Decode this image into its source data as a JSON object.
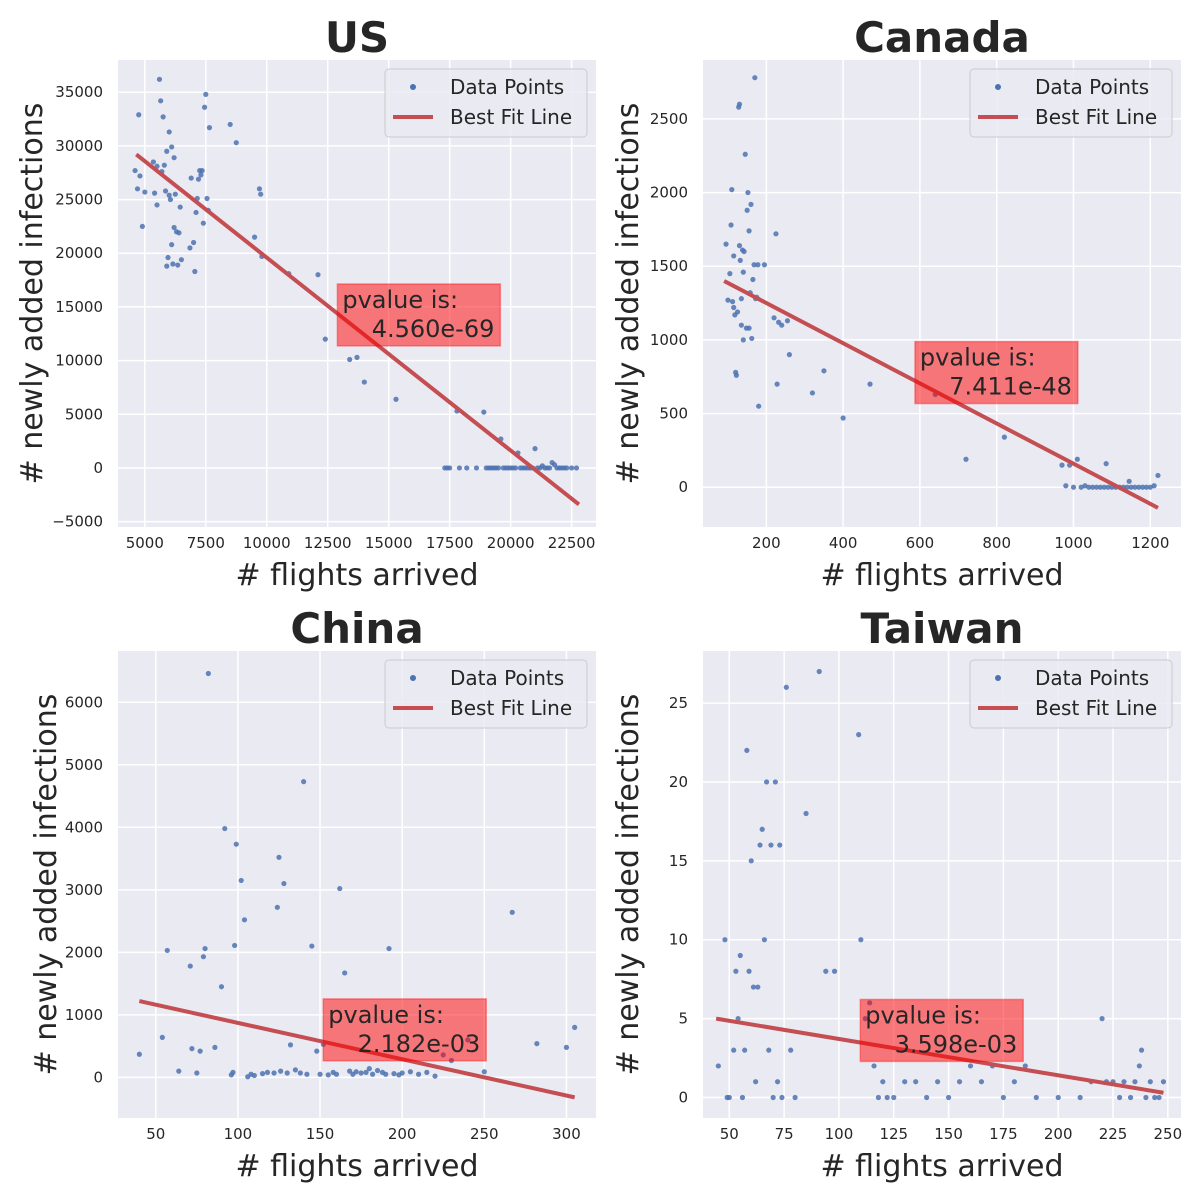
{
  "colors": {
    "point": "#4c72b0",
    "line": "#c44e52",
    "annotation_box": "#ff0000",
    "axes_bg": "#eaeaf2",
    "grid": "#ffffff"
  },
  "chart_data": [
    {
      "type": "scatter",
      "title": "US",
      "xlabel": "# flights arrived",
      "ylabel": "# newly added infections",
      "xlim": [
        3900,
        23500
      ],
      "ylim": [
        -5500,
        38000
      ],
      "xticks": [
        5000,
        7500,
        10000,
        12500,
        15000,
        17500,
        20000,
        22500
      ],
      "yticks": [
        -5000,
        0,
        5000,
        10000,
        15000,
        20000,
        25000,
        30000,
        35000
      ],
      "xtick_labels": [
        "5000",
        "7500",
        "10000",
        "12500",
        "15000",
        "17500",
        "20000",
        "22500"
      ],
      "ytick_labels": [
        "−5000",
        "0",
        "5000",
        "10000",
        "15000",
        "20000",
        "25000",
        "30000",
        "35000"
      ],
      "grid": true,
      "legend_position": "upper-right",
      "legend": [
        "Data Points",
        "Best Fit Line"
      ],
      "annotation": {
        "lines": [
          "pvalue is:",
          "4.560e-69"
        ],
        "x": 13100,
        "y": 15650
      },
      "fit_line": {
        "x": [
          4650,
          22800
        ],
        "y": [
          29200,
          -3400
        ]
      },
      "x": [
        4600,
        4700,
        4750,
        4800,
        4900,
        5000,
        5350,
        5400,
        5500,
        5500,
        5600,
        5650,
        5700,
        5750,
        5800,
        5850,
        5900,
        5900,
        5950,
        6000,
        6000,
        6050,
        6100,
        6100,
        6150,
        6200,
        6200,
        6250,
        6300,
        6350,
        6400,
        6450,
        6500,
        6850,
        6900,
        7000,
        7050,
        7100,
        7150,
        7200,
        7250,
        7300,
        7350,
        7400,
        7450,
        7500,
        7550,
        7600,
        7650,
        8500,
        8750,
        9500,
        9700,
        9750,
        9800,
        10900,
        12100,
        12400,
        13400,
        13700,
        14000,
        15300,
        17300,
        17400,
        17500,
        17800,
        17900,
        18200,
        18600,
        18900,
        19000,
        19100,
        19200,
        19300,
        19400,
        19500,
        19600,
        19700,
        19800,
        19900,
        20000,
        20100,
        20200,
        20300,
        20400,
        20500,
        20600,
        20700,
        20800,
        20900,
        21000,
        21100,
        21200,
        21300,
        21400,
        21500,
        21600,
        21700,
        21800,
        21900,
        22000,
        22100,
        22200,
        22300,
        22500,
        22700
      ],
      "y": [
        27700,
        26000,
        32900,
        27200,
        22500,
        25700,
        28500,
        25600,
        24500,
        28100,
        36200,
        34200,
        27600,
        32700,
        28200,
        25800,
        29500,
        18800,
        19600,
        31300,
        25400,
        25000,
        20800,
        29900,
        19000,
        22400,
        28900,
        25500,
        22000,
        18900,
        21900,
        24300,
        19400,
        20500,
        27000,
        21000,
        18300,
        23800,
        25100,
        26900,
        27700,
        27300,
        27700,
        22800,
        33600,
        34800,
        25100,
        24000,
        31700,
        32000,
        30300,
        21500,
        26000,
        25500,
        19700,
        18100,
        18000,
        12000,
        10100,
        10300,
        8000,
        6400,
        0,
        0,
        0,
        5300,
        0,
        0,
        0,
        5200,
        0,
        0,
        0,
        0,
        0,
        0,
        2700,
        0,
        0,
        0,
        0,
        0,
        0,
        1400,
        0,
        0,
        0,
        0,
        0,
        0,
        1800,
        0,
        0,
        200,
        0,
        0,
        0,
        500,
        300,
        0,
        0,
        0,
        0,
        0,
        0,
        0
      ]
    },
    {
      "type": "scatter",
      "title": "Canada",
      "xlabel": "# flights arrived",
      "ylabel": "# newly added infections",
      "xlim": [
        35,
        1280
      ],
      "ylim": [
        -270,
        2900
      ],
      "xticks": [
        200,
        400,
        600,
        800,
        1000,
        1200
      ],
      "yticks": [
        0,
        500,
        1000,
        1500,
        2000,
        2500
      ],
      "xtick_labels": [
        "200",
        "400",
        "600",
        "800",
        "1000",
        "1200"
      ],
      "ytick_labels": [
        "0",
        "500",
        "1000",
        "1500",
        "2000",
        "2500"
      ],
      "grid": true,
      "legend_position": "upper-right",
      "legend": [
        "Data Points",
        "Best Fit Line"
      ],
      "annotation": {
        "lines": [
          "pvalue is:",
          "7.411e-48"
        ],
        "x": 600,
        "y": 880
      },
      "fit_line": {
        "x": [
          90,
          1220
        ],
        "y": [
          1400,
          -140
        ]
      },
      "x": [
        95,
        100,
        105,
        108,
        110,
        112,
        115,
        115,
        118,
        120,
        122,
        125,
        128,
        130,
        130,
        132,
        135,
        135,
        138,
        140,
        140,
        142,
        145,
        148,
        150,
        152,
        155,
        155,
        158,
        160,
        162,
        165,
        168,
        170,
        172,
        175,
        178,
        180,
        195,
        220,
        225,
        228,
        232,
        240,
        255,
        260,
        320,
        350,
        400,
        470,
        640,
        720,
        820,
        970,
        980,
        990,
        1000,
        1010,
        1020,
        1030,
        1040,
        1050,
        1060,
        1070,
        1080,
        1085,
        1090,
        1100,
        1110,
        1120,
        1130,
        1140,
        1145,
        1150,
        1160,
        1170,
        1180,
        1190,
        1200,
        1210,
        1220
      ],
      "y": [
        1650,
        1270,
        1450,
        1780,
        2020,
        1260,
        1570,
        1220,
        1170,
        780,
        760,
        1190,
        2580,
        2600,
        1640,
        1540,
        1280,
        1100,
        1610,
        1460,
        1000,
        1600,
        2260,
        1080,
        1880,
        2000,
        1740,
        1080,
        1320,
        1920,
        1010,
        1410,
        1510,
        2780,
        1280,
        1290,
        1510,
        550,
        1510,
        1150,
        1720,
        700,
        1120,
        1100,
        1130,
        900,
        640,
        790,
        470,
        700,
        630,
        190,
        340,
        150,
        10,
        150,
        0,
        190,
        0,
        10,
        0,
        0,
        0,
        0,
        0,
        160,
        0,
        0,
        0,
        0,
        0,
        0,
        40,
        0,
        0,
        0,
        0,
        0,
        0,
        10,
        80
      ]
    },
    {
      "type": "scatter",
      "title": "China",
      "xlabel": "# flights arrived",
      "ylabel": "# newly added infections",
      "xlim": [
        27,
        318
      ],
      "ylim": [
        -650,
        6820
      ],
      "xticks": [
        50,
        100,
        150,
        200,
        250,
        300
      ],
      "yticks": [
        0,
        1000,
        2000,
        3000,
        4000,
        5000,
        6000
      ],
      "xtick_labels": [
        "50",
        "100",
        "150",
        "200",
        "250",
        "300"
      ],
      "ytick_labels": [
        "0",
        "1000",
        "2000",
        "3000",
        "4000",
        "5000",
        "6000"
      ],
      "grid": true,
      "legend_position": "upper-right",
      "legend": [
        "Data Points",
        "Best Fit Line"
      ],
      "annotation": {
        "lines": [
          "pvalue is:",
          "2.182e-03"
        ],
        "x": 155,
        "y": 1000
      },
      "fit_line": {
        "x": [
          40,
          305
        ],
        "y": [
          1220,
          -320
        ]
      },
      "x": [
        40,
        54,
        57,
        64,
        71,
        72,
        75,
        77,
        79,
        80,
        82,
        86,
        90,
        92,
        96,
        97,
        98,
        99,
        102,
        104,
        106,
        108,
        110,
        115,
        118,
        122,
        124,
        125,
        126,
        128,
        130,
        132,
        135,
        138,
        140,
        142,
        145,
        148,
        150,
        152,
        155,
        158,
        160,
        162,
        165,
        168,
        170,
        172,
        175,
        178,
        180,
        182,
        185,
        188,
        190,
        192,
        195,
        198,
        200,
        205,
        210,
        215,
        220,
        225,
        230,
        240,
        250,
        267,
        282,
        300,
        305
      ],
      "y": [
        370,
        640,
        2030,
        100,
        1780,
        460,
        70,
        420,
        1930,
        2060,
        6460,
        480,
        1450,
        3980,
        40,
        80,
        2110,
        3730,
        3150,
        2520,
        10,
        50,
        30,
        60,
        80,
        70,
        2720,
        3520,
        100,
        3100,
        70,
        520,
        120,
        70,
        4730,
        50,
        2100,
        420,
        50,
        530,
        40,
        80,
        50,
        3020,
        1670,
        100,
        50,
        90,
        70,
        80,
        140,
        50,
        110,
        80,
        50,
        2060,
        60,
        40,
        70,
        90,
        50,
        80,
        20,
        360,
        270,
        600,
        90,
        2640,
        540,
        480,
        800
      ]
    },
    {
      "type": "scatter",
      "title": "Taiwan",
      "xlabel": "# flights arrived",
      "ylabel": "# newly added infections",
      "xlim": [
        38,
        256
      ],
      "ylim": [
        -1.3,
        28.3
      ],
      "xticks": [
        50,
        75,
        100,
        125,
        150,
        175,
        200,
        225,
        250
      ],
      "yticks": [
        0,
        5,
        10,
        15,
        20,
        25
      ],
      "xtick_labels": [
        "50",
        "75",
        "100",
        "125",
        "150",
        "175",
        "200",
        "225",
        "250"
      ],
      "ytick_labels": [
        "0",
        "5",
        "10",
        "15",
        "20",
        "25"
      ],
      "grid": true,
      "legend_position": "upper-right",
      "legend": [
        "Data Points",
        "Best Fit Line"
      ],
      "annotation": {
        "lines": [
          "pvalue is:",
          "3.598e-03"
        ],
        "x": 112,
        "y": 5.2
      },
      "fit_line": {
        "x": [
          44,
          248
        ],
        "y": [
          5,
          0.3
        ]
      },
      "x": [
        45,
        48,
        49,
        50,
        52,
        53,
        54,
        55,
        56,
        57,
        58,
        59,
        60,
        61,
        62,
        63,
        64,
        65,
        66,
        67,
        68,
        69,
        70,
        71,
        72,
        73,
        74,
        76,
        78,
        80,
        85,
        91,
        94,
        98,
        109,
        110,
        112,
        114,
        116,
        118,
        120,
        122,
        125,
        130,
        135,
        140,
        145,
        150,
        155,
        160,
        165,
        170,
        175,
        180,
        185,
        190,
        200,
        210,
        215,
        220,
        222,
        225,
        228,
        230,
        233,
        235,
        237,
        238,
        240,
        242,
        244,
        246,
        248
      ],
      "y": [
        2,
        10,
        0,
        0,
        3,
        8,
        5,
        9,
        0,
        3,
        22,
        8,
        15,
        7,
        1,
        7,
        16,
        17,
        10,
        20,
        3,
        16,
        0,
        20,
        1,
        16,
        0,
        26,
        3,
        0,
        18,
        27,
        8,
        8,
        23,
        10,
        5,
        6,
        2,
        0,
        1,
        0,
        0,
        1,
        1,
        0,
        1,
        0,
        1,
        2,
        1,
        2,
        0,
        1,
        2,
        0,
        0,
        0,
        1,
        5,
        1,
        1,
        0,
        1,
        0,
        1,
        2,
        3,
        0,
        1,
        0,
        0,
        1
      ]
    }
  ]
}
